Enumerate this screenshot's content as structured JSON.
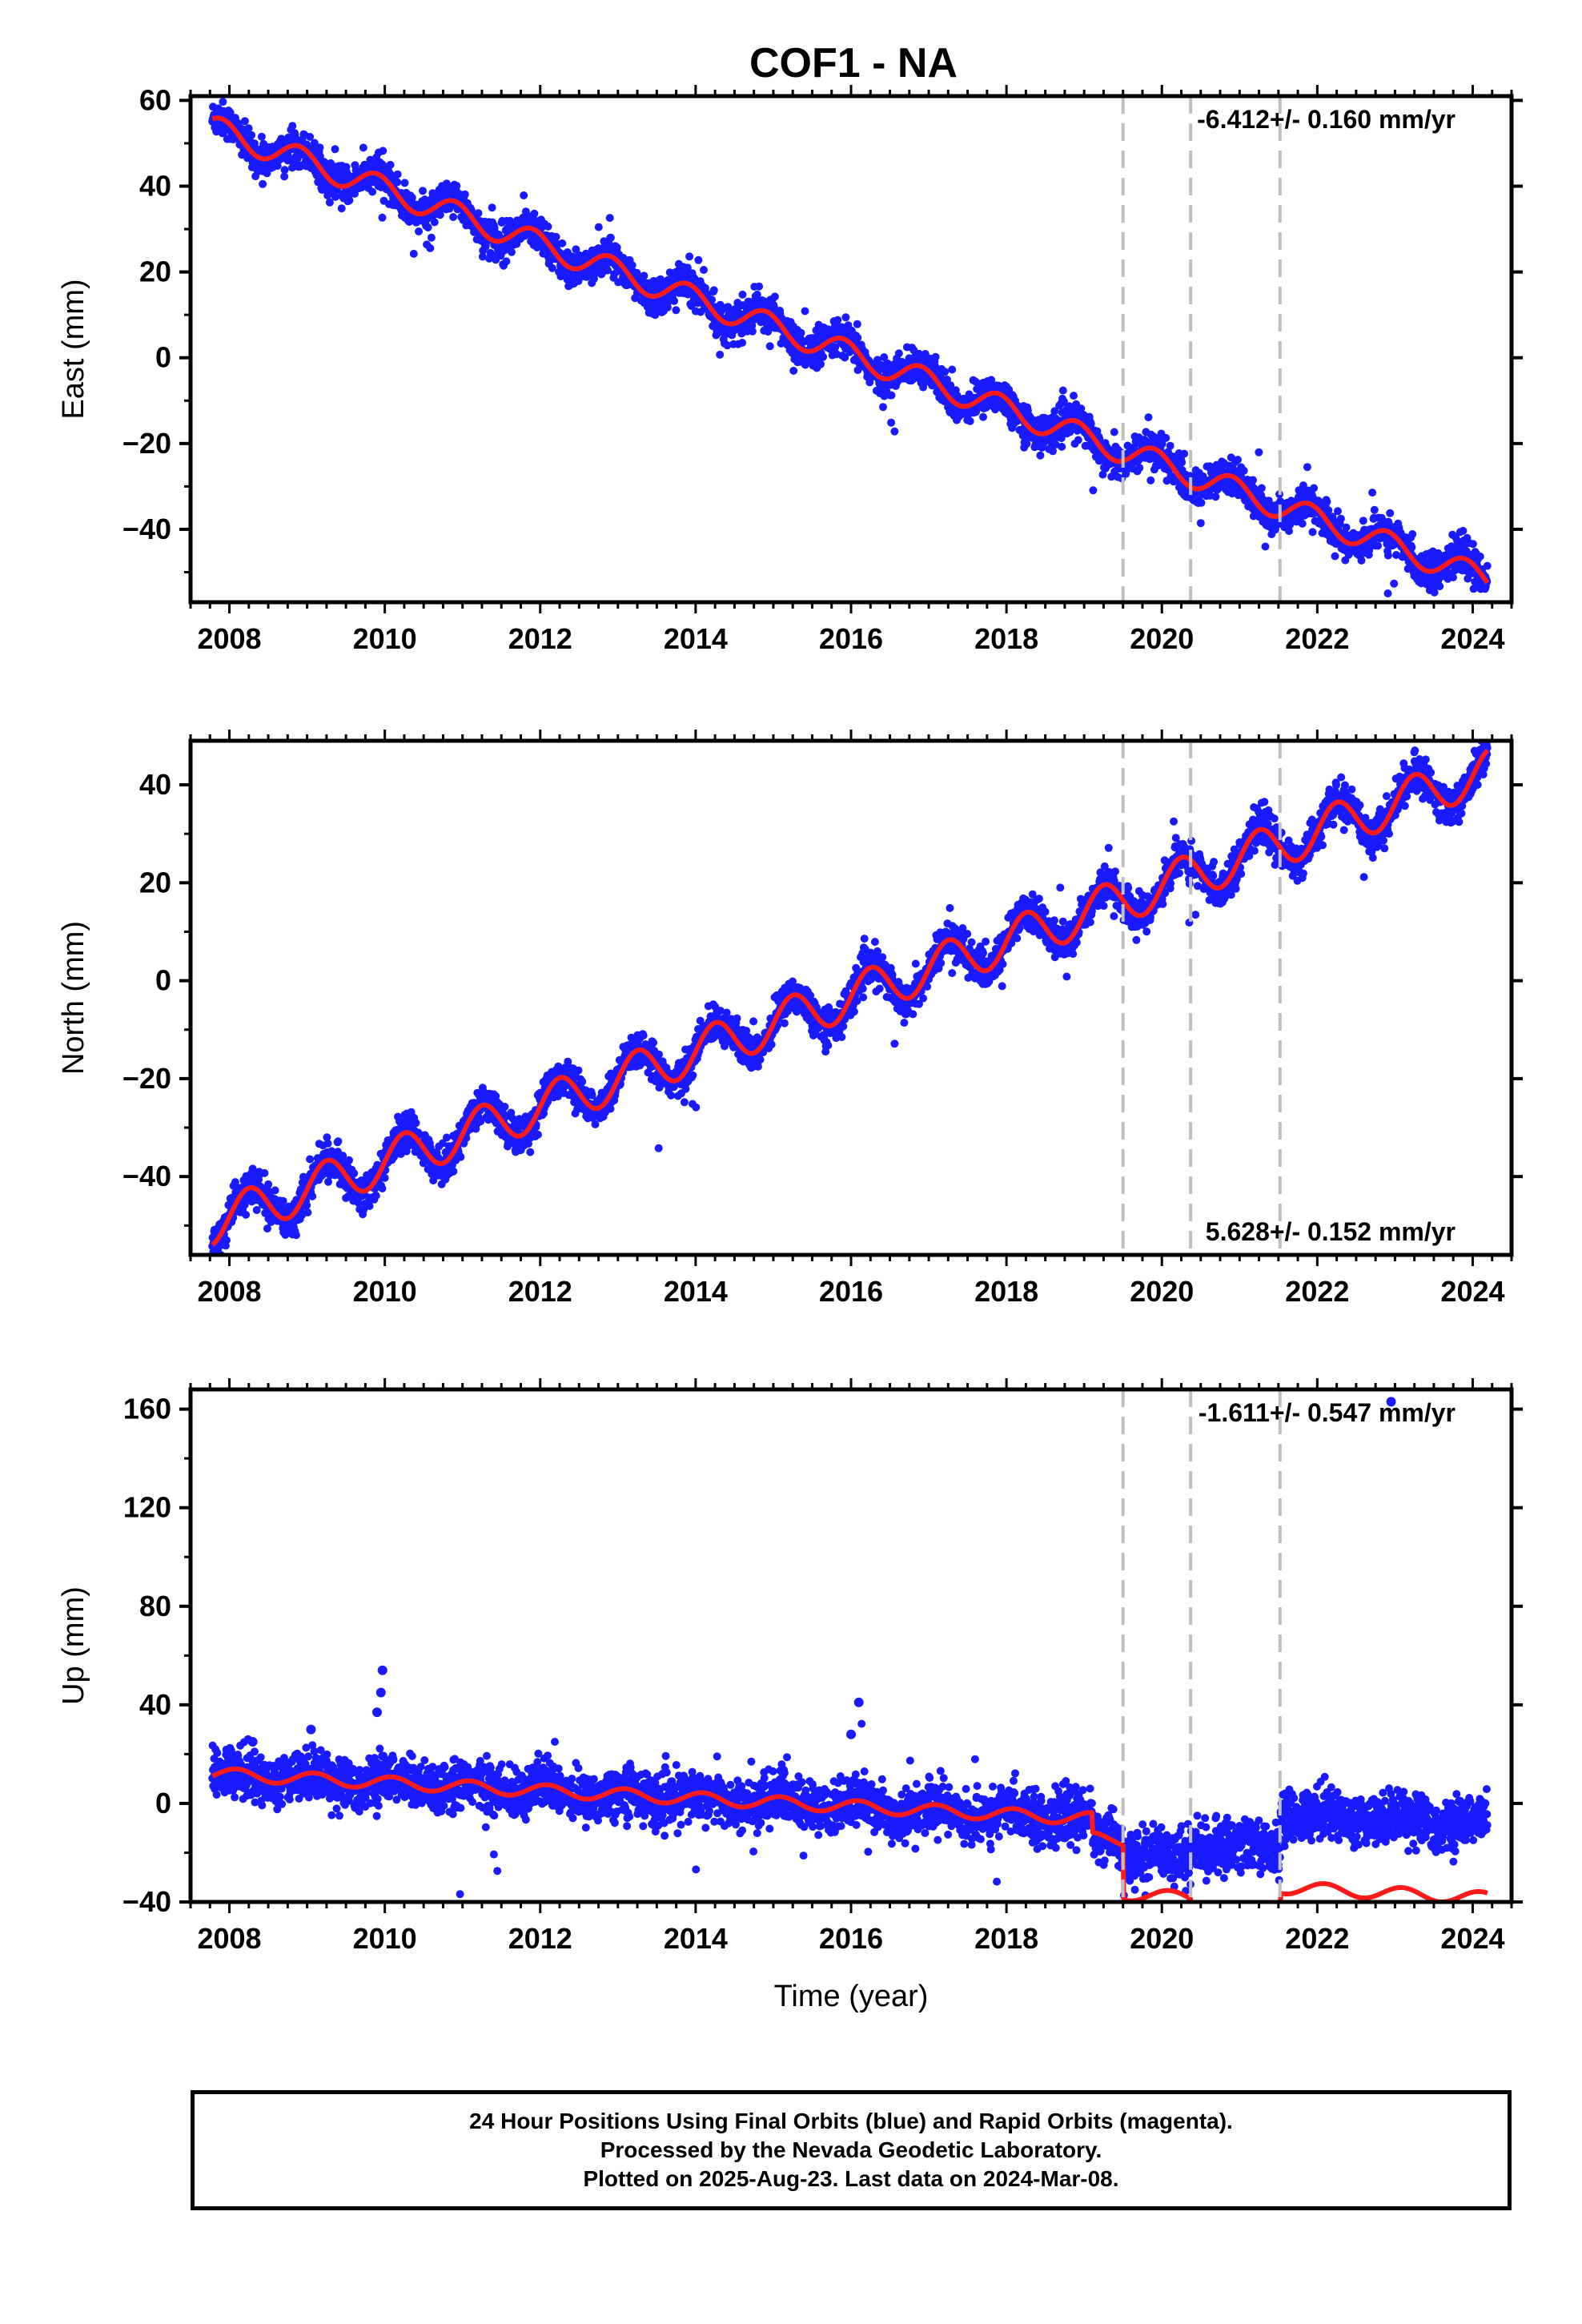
{
  "title": "COF1 - NA",
  "colors": {
    "points": "#1a1aff",
    "model": "#ff1a1a",
    "frame": "#000000",
    "breaks": "#bfbfbf"
  },
  "chart_data": [
    {
      "type": "scatter",
      "name": "east",
      "ylabel": "East (mm)",
      "xlabel": "",
      "xlim": [
        2007.5,
        2024.5
      ],
      "ylim": [
        -57,
        61
      ],
      "yticks": [
        -40,
        -20,
        0,
        20,
        40,
        60
      ],
      "xticks": [
        2008,
        2010,
        2012,
        2014,
        2016,
        2018,
        2020,
        2022,
        2024
      ],
      "rate_label": "-6.412+/- 0.160 mm/yr",
      "rate_position": "top-right",
      "series": [
        {
          "name": "Final Orbits",
          "style": "points",
          "start": 2007.78,
          "end": 2024.19,
          "intercept": 53.5,
          "rate": -6.412,
          "annual_amp": 3.0,
          "annual_phase": 2.2,
          "scatter": 2.0
        }
      ],
      "model": {
        "start": 2007.78,
        "end": 2024.19,
        "intercept": 53.5,
        "rate": -6.412,
        "annual_amp": 3.0,
        "annual_phase": 2.2
      },
      "breaks": [
        2019.5,
        2020.37,
        2021.52
      ]
    },
    {
      "type": "scatter",
      "name": "north",
      "ylabel": "North (mm)",
      "xlabel": "",
      "xlim": [
        2007.5,
        2024.5
      ],
      "ylim": [
        -56,
        49
      ],
      "yticks": [
        -40,
        -20,
        0,
        20,
        40
      ],
      "xticks": [
        2008,
        2010,
        2012,
        2014,
        2016,
        2018,
        2020,
        2022,
        2024
      ],
      "rate_label": "5.628+/- 0.152 mm/yr",
      "rate_position": "bottom-right",
      "series": [
        {
          "name": "Final Orbits",
          "style": "points",
          "start": 2007.78,
          "end": 2024.19,
          "intercept": -49.5,
          "rate": 5.628,
          "annual_amp": 4.5,
          "annual_phase": 0.0,
          "scatter": 1.8
        }
      ],
      "model": {
        "start": 2007.78,
        "end": 2024.19,
        "intercept": -49.5,
        "rate": 5.628,
        "annual_amp": 4.5,
        "annual_phase": 0.0
      },
      "breaks": [
        2019.5,
        2020.37,
        2021.52
      ]
    },
    {
      "type": "scatter",
      "name": "up",
      "ylabel": "Up (mm)",
      "xlabel": "Time (year)",
      "xlim": [
        2007.5,
        2024.5
      ],
      "ylim": [
        -40,
        168
      ],
      "yticks": [
        -40,
        0,
        40,
        80,
        120,
        160
      ],
      "xticks": [
        2008,
        2010,
        2012,
        2014,
        2016,
        2018,
        2020,
        2022,
        2024
      ],
      "rate_label": "-1.611+/- 0.547 mm/yr",
      "rate_position": "top-right",
      "series": [
        {
          "name": "Final Orbits",
          "style": "points",
          "start": 2007.78,
          "end": 2024.19,
          "intercept": 12.0,
          "rate": -1.611,
          "annual_amp": 2.5,
          "annual_phase": 1.0,
          "scatter": 5.0,
          "offsets": [
            {
              "from": 2019.1,
              "to": 2019.5,
              "value": -8
            },
            {
              "from": 2019.5,
              "to": 2020.37,
              "value": -14
            },
            {
              "from": 2020.37,
              "to": 2021.52,
              "value": -8
            },
            {
              "from": 2021.52,
              "to": 2024.2,
              "value": 6
            }
          ],
          "outliers": [
            [
              2009.97,
              54
            ],
            [
              2009.95,
              45
            ],
            [
              2009.9,
              37
            ],
            [
              2016.1,
              41
            ],
            [
              2016.0,
              28
            ],
            [
              2009.05,
              30
            ],
            [
              2008.3,
              25
            ],
            [
              2022.95,
              163
            ]
          ]
        }
      ],
      "model": {
        "start": 2007.78,
        "end": 2024.19,
        "intercept": 12.0,
        "rate": -1.611,
        "annual_amp": 2.5,
        "annual_phase": 1.0,
        "steps": [
          {
            "at": 2019.1,
            "value": -8
          },
          {
            "at": 2019.5,
            "value": -22
          },
          {
            "at": 2020.37,
            "value": -8
          },
          {
            "at": 2021.52,
            "value": 14
          }
        ]
      },
      "breaks": [
        2019.5,
        2020.37,
        2021.52
      ]
    }
  ],
  "footer": {
    "line1": "24 Hour Positions Using Final Orbits (blue) and Rapid Orbits (magenta).",
    "line2": "Processed by the Nevada Geodetic Laboratory.",
    "line3": "Plotted on 2025-Aug-23. Last data on 2024-Mar-08."
  }
}
